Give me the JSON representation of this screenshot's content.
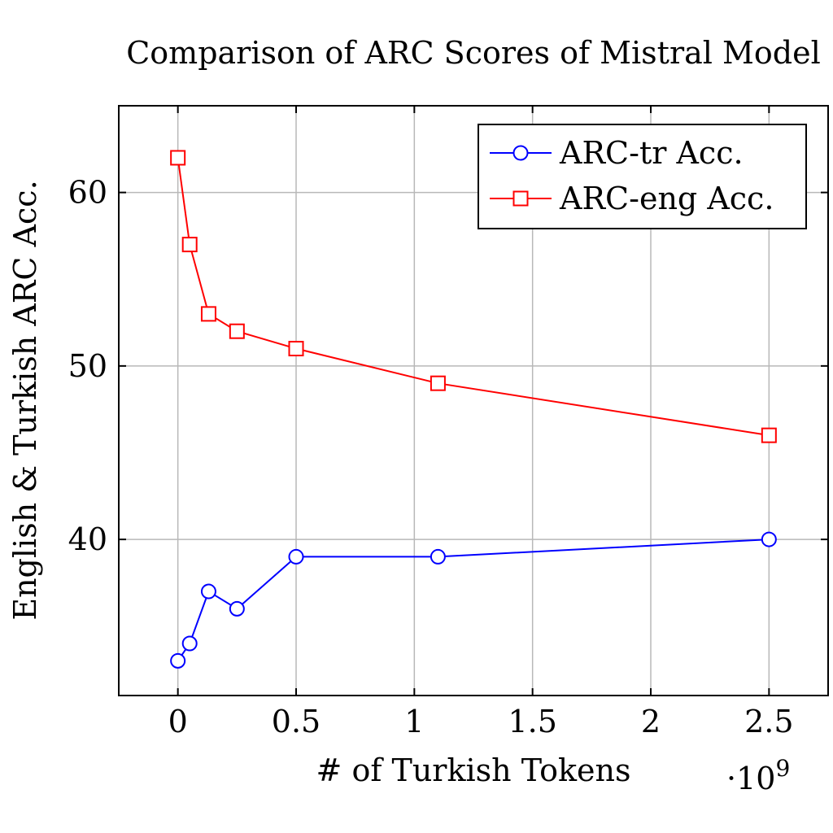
{
  "chart_data": {
    "type": "line",
    "title": "Comparison of ARC Scores of Mistral Model",
    "xlabel": "# of Turkish Tokens",
    "x_multiplier": "·10",
    "x_multiplier_exp": "9",
    "ylabel": "English & Turkish ARC Acc.",
    "xlim": [
      -0.25,
      2.75
    ],
    "ylim": [
      31,
      65
    ],
    "x_ticks": [
      0,
      0.5,
      1,
      1.5,
      2,
      2.5
    ],
    "x_tick_labels": [
      "0",
      "0.5",
      "1",
      "1.5",
      "2",
      "2.5"
    ],
    "y_ticks": [
      40,
      50,
      60
    ],
    "y_tick_labels": [
      "40",
      "50",
      "60"
    ],
    "grid": true,
    "legend_position": "top-right",
    "series": [
      {
        "name": "ARC-tr Acc.",
        "color": "#0000ff",
        "marker": "circle",
        "x": [
          0,
          0.05,
          0.13,
          0.25,
          0.5,
          1.1,
          2.5
        ],
        "y": [
          33,
          34,
          37,
          36,
          39,
          39,
          40
        ]
      },
      {
        "name": "ARC-eng Acc.",
        "color": "#ff0000",
        "marker": "square",
        "x": [
          0,
          0.05,
          0.13,
          0.25,
          0.5,
          1.1,
          2.5
        ],
        "y": [
          62,
          57,
          53,
          52,
          51,
          49,
          46
        ]
      }
    ]
  }
}
